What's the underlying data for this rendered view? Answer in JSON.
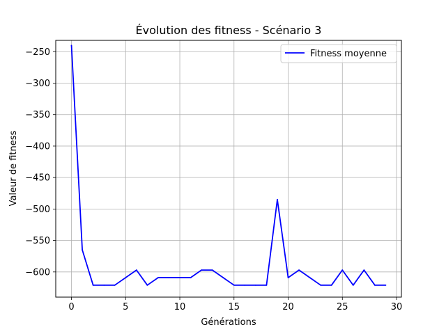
{
  "chart_data": {
    "type": "line",
    "title": "Évolution des fitness - Scénario 3",
    "xlabel": "Générations",
    "ylabel": "Valeur de fitness",
    "xlim": [
      -1.45,
      30.45
    ],
    "ylim": [
      -640,
      -232
    ],
    "xticks": [
      0,
      5,
      10,
      15,
      20,
      25,
      30
    ],
    "xtick_labels": [
      "0",
      "5",
      "10",
      "15",
      "20",
      "25",
      "30"
    ],
    "yticks": [
      -250,
      -300,
      -350,
      -400,
      -450,
      -500,
      -550,
      -600
    ],
    "ytick_labels": [
      "−250",
      "−300",
      "−350",
      "−400",
      "−450",
      "−500",
      "−550",
      "−600"
    ],
    "grid": true,
    "legend_position": "top-right",
    "series": [
      {
        "name": "Fitness moyenne",
        "color": "#0000ff",
        "x": [
          0,
          1,
          2,
          3,
          4,
          5,
          6,
          7,
          8,
          9,
          10,
          11,
          12,
          13,
          14,
          15,
          16,
          17,
          18,
          19,
          20,
          21,
          22,
          23,
          24,
          25,
          26,
          27,
          28,
          29
        ],
        "values": [
          -240,
          -565,
          -621,
          -621,
          -621,
          -609,
          -597,
          -621,
          -609,
          -609,
          -609,
          -609,
          -597,
          -597,
          -609,
          -621,
          -621,
          -621,
          -621,
          -485,
          -609,
          -597,
          -609,
          -621,
          -621,
          -597,
          -621,
          -597,
          -621,
          -621
        ]
      }
    ]
  }
}
